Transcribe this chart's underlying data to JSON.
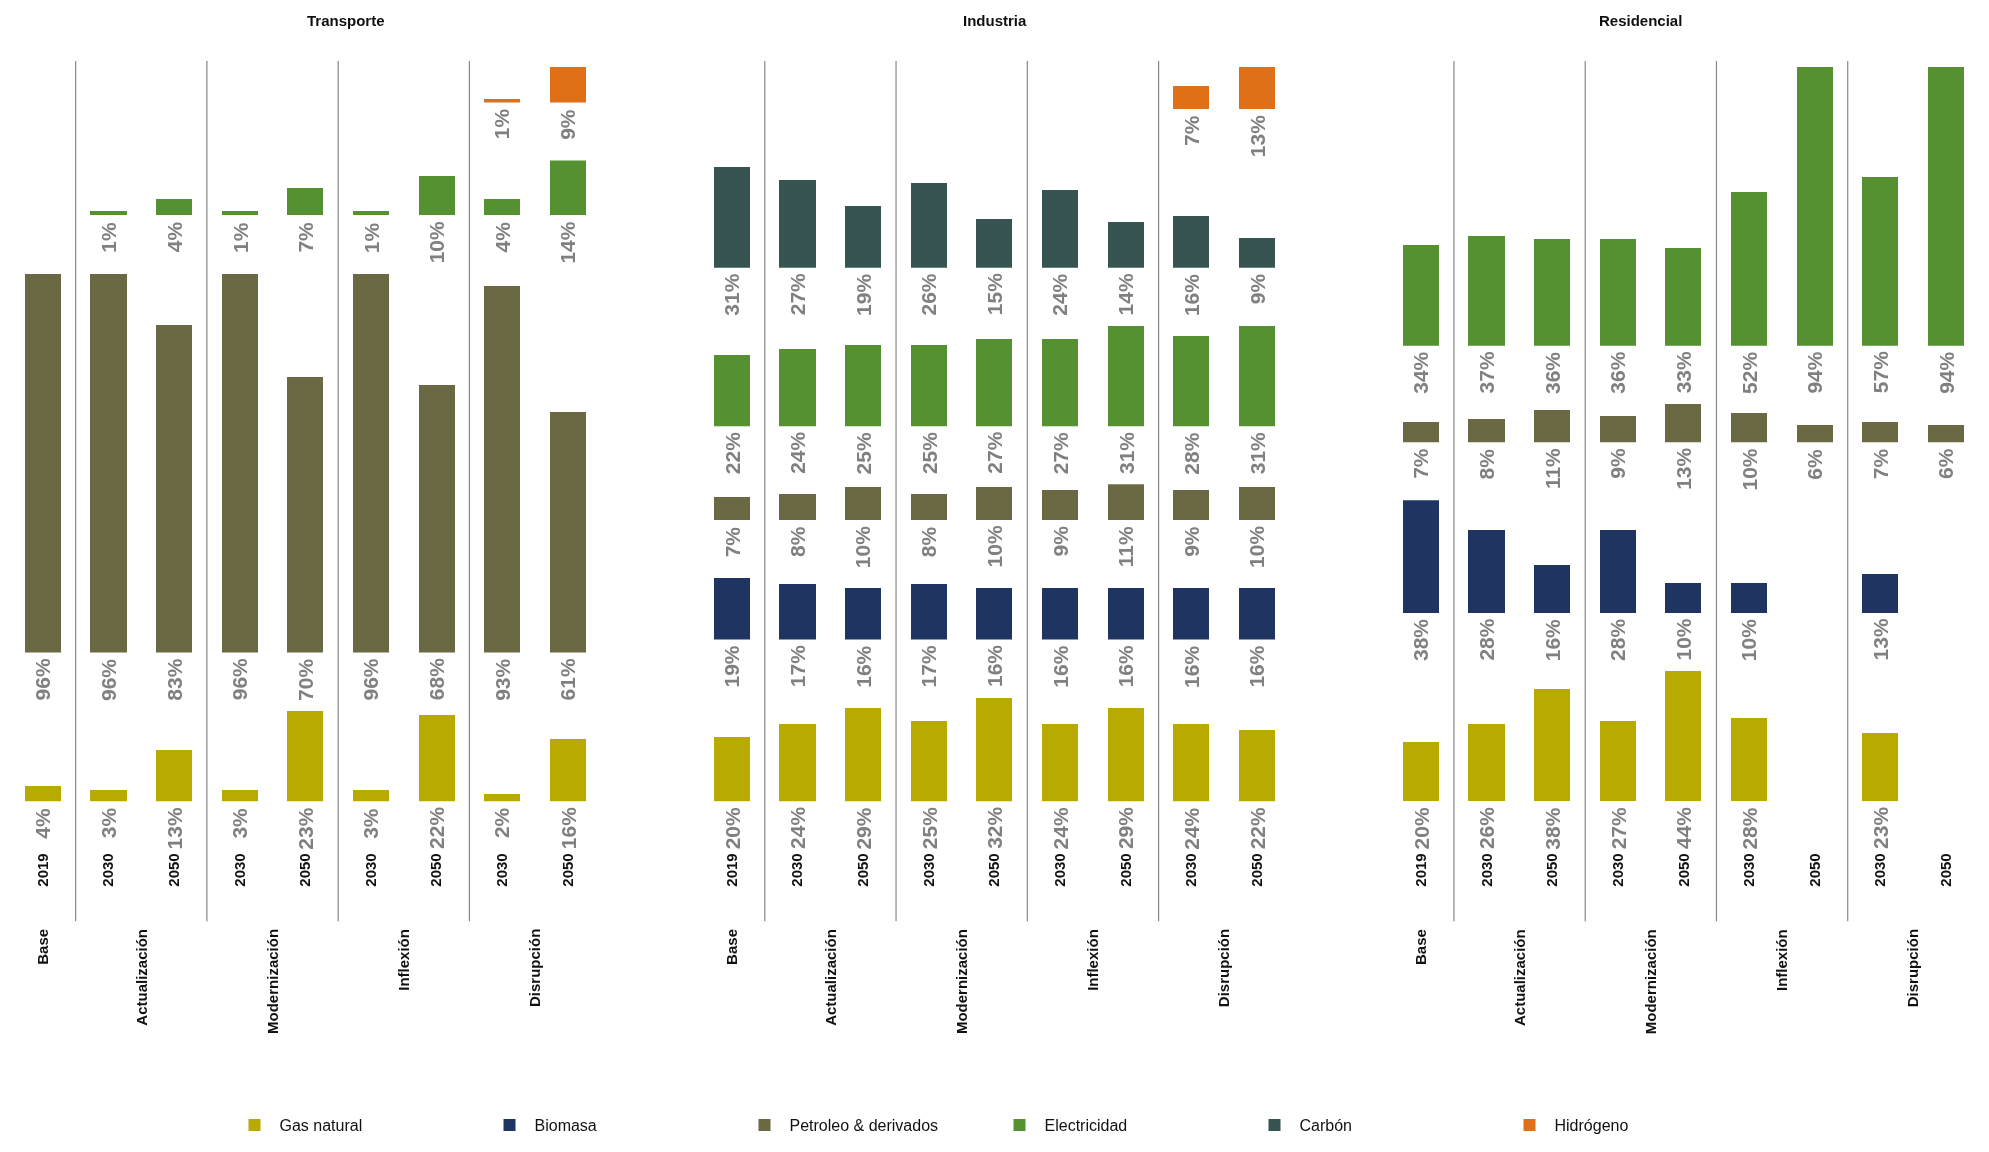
{
  "chart_data": [
    {
      "type": "bar",
      "title": "Transporte",
      "categories": [
        "2019",
        "2030",
        "2050",
        "2030",
        "2050",
        "2030",
        "2050",
        "2030",
        "2050"
      ],
      "tick_labels": false,
      "series": [
        {
          "color": "#e07018",
          "values": [
            null,
            null,
            null,
            null,
            null,
            null,
            null,
            1,
            9
          ],
          "value_labels": [
            null,
            null,
            null,
            null,
            null,
            null,
            null,
            "1%",
            "9%"
          ]
        }
      ]
    },
    {
      "type": "bar",
      "categories": [
        "2019",
        "2030",
        "2050",
        "2030",
        "2050",
        "2030",
        "2050",
        "2030",
        "2050"
      ],
      "tick_labels": false,
      "series": [
        {
          "color": "#559130",
          "values": [
            null,
            1,
            4,
            1,
            7,
            1,
            10,
            4,
            14
          ],
          "value_labels": [
            null,
            "1%",
            "4%",
            "1%",
            "7%",
            "1%",
            "10%",
            "4%",
            "14%"
          ]
        }
      ]
    },
    {
      "type": "bar",
      "categories": [
        "2019",
        "2030",
        "2050",
        "2030",
        "2050",
        "2030",
        "2050",
        "2030",
        "2050"
      ],
      "tick_labels": false,
      "series": [
        {
          "color": "#6b6944",
          "values": [
            96,
            96,
            83,
            96,
            70,
            96,
            68,
            93,
            61
          ],
          "value_labels": [
            "96%",
            "96%",
            "83%",
            "96%",
            "70%",
            "96%",
            "68%",
            "93%",
            "61%"
          ]
        }
      ]
    },
    {
      "type": "bar",
      "categories": [
        "2019",
        "2030",
        "2050",
        "2030",
        "2050",
        "2030",
        "2050",
        "2030",
        "2050"
      ],
      "tick_labels": "x",
      "annotations": [
        "Base",
        "Actualización",
        "Modernización",
        "Inflexión",
        "Disrupción"
      ],
      "series": [
        {
          "color": "#b8aa00",
          "values": [
            4,
            3,
            13,
            3,
            23,
            3,
            22,
            2,
            16
          ],
          "value_labels": [
            "4%",
            "3%",
            "13%",
            "3%",
            "23%",
            "3%",
            "22%",
            "2%",
            "16%"
          ]
        }
      ]
    },
    {
      "type": "bar",
      "title": "Industria",
      "categories": [
        "2019",
        "2030",
        "2050",
        "2030",
        "2050",
        "2030",
        "2050",
        "2030",
        "2050"
      ],
      "tick_labels": false,
      "legend": "bottom",
      "series": [
        {
          "name": "Hidrógeno",
          "color": "#e07018",
          "values": [
            null,
            null,
            null,
            null,
            null,
            null,
            null,
            7,
            13
          ],
          "value_labels": [
            null,
            null,
            null,
            null,
            null,
            null,
            null,
            "7%",
            "13%"
          ]
        }
      ]
    },
    {
      "type": "bar",
      "categories": [
        "2019",
        "2030",
        "2050",
        "2030",
        "2050",
        "2030",
        "2050",
        "2030",
        "2050"
      ],
      "tick_labels": false,
      "legend": "bottom",
      "series": [
        {
          "name": "Carbón",
          "color": "#375352",
          "values": [
            31,
            27,
            19,
            26,
            15,
            24,
            14,
            16,
            9
          ],
          "value_labels": [
            "31%",
            "27%",
            "19%",
            "26%",
            "15%",
            "24%",
            "14%",
            "16%",
            "9%"
          ]
        }
      ]
    },
    {
      "type": "bar",
      "categories": [
        "2019",
        "2030",
        "2050",
        "2030",
        "2050",
        "2030",
        "2050",
        "2030",
        "2050"
      ],
      "tick_labels": false,
      "legend": "bottom",
      "series": [
        {
          "name": "Electricidad",
          "color": "#559130",
          "values": [
            22,
            24,
            25,
            25,
            27,
            27,
            31,
            28,
            31
          ],
          "value_labels": [
            "22%",
            "24%",
            "25%",
            "25%",
            "27%",
            "27%",
            "31%",
            "28%",
            "31%"
          ]
        }
      ]
    },
    {
      "type": "bar",
      "categories": [
        "2019",
        "2030",
        "2050",
        "2030",
        "2050",
        "2030",
        "2050",
        "2030",
        "2050"
      ],
      "tick_labels": false,
      "legend": "bottom",
      "series": [
        {
          "name": "Petroleo & derivados",
          "color": "#6b6944",
          "values": [
            7,
            8,
            10,
            8,
            10,
            9,
            11,
            9,
            10
          ],
          "value_labels": [
            "7%",
            "8%",
            "10%",
            "8%",
            "10%",
            "9%",
            "11%",
            "9%",
            "10%"
          ]
        }
      ]
    },
    {
      "type": "bar",
      "categories": [
        "2019",
        "2030",
        "2050",
        "2030",
        "2050",
        "2030",
        "2050",
        "2030",
        "2050"
      ],
      "tick_labels": false,
      "legend": "bottom",
      "series": [
        {
          "name": "Biomasa",
          "color": "#1f3461",
          "values": [
            19,
            17,
            16,
            17,
            16,
            16,
            16,
            16,
            16
          ],
          "value_labels": [
            "19%",
            "17%",
            "16%",
            "17%",
            "16%",
            "16%",
            "16%",
            "16%",
            "16%"
          ]
        }
      ]
    },
    {
      "type": "bar",
      "categories": [
        "2019",
        "2030",
        "2050",
        "2030",
        "2050",
        "2030",
        "2050",
        "2030",
        "2050"
      ],
      "tick_labels": "x",
      "legend": "bottom",
      "annotations": [
        "Base",
        "Actualización",
        "Modernización",
        "Inflexión",
        "Disrupción"
      ],
      "series": [
        {
          "name": "Gas natural",
          "color": "#b8aa00",
          "values": [
            20,
            24,
            29,
            25,
            32,
            24,
            29,
            24,
            22
          ],
          "value_labels": [
            "20%",
            "24%",
            "29%",
            "25%",
            "32%",
            "24%",
            "29%",
            "24%",
            "22%"
          ]
        }
      ]
    },
    {
      "type": "bar",
      "title": "Residencial",
      "categories": [
        "2019",
        "2030",
        "2050",
        "2030",
        "2050",
        "2030",
        "2050",
        "2030",
        "2050"
      ],
      "tick_labels": false,
      "series": [
        {
          "color": "#559130",
          "values": [
            34,
            37,
            36,
            36,
            33,
            52,
            94,
            57,
            94
          ],
          "value_labels": [
            "34%",
            "37%",
            "36%",
            "36%",
            "33%",
            "52%",
            "94%",
            "57%",
            "94%"
          ]
        }
      ]
    },
    {
      "type": "bar",
      "categories": [
        "2019",
        "2030",
        "2050",
        "2030",
        "2050",
        "2030",
        "2050",
        "2030",
        "2050"
      ],
      "tick_labels": false,
      "series": [
        {
          "color": "#6b6944",
          "values": [
            7,
            8,
            11,
            9,
            13,
            10,
            6,
            7,
            6
          ],
          "value_labels": [
            "7%",
            "8%",
            "11%",
            "9%",
            "13%",
            "10%",
            "6%",
            "7%",
            "6%"
          ]
        }
      ]
    },
    {
      "type": "bar",
      "categories": [
        "2019",
        "2030",
        "2050",
        "2030",
        "2050",
        "2030",
        "2050",
        "2030",
        "2050"
      ],
      "tick_labels": false,
      "series": [
        {
          "color": "#1f3461",
          "values": [
            38,
            28,
            16,
            28,
            10,
            10,
            null,
            13,
            null
          ],
          "value_labels": [
            "38%",
            "28%",
            "16%",
            "28%",
            "10%",
            "10%",
            null,
            "13%",
            null
          ]
        }
      ]
    },
    {
      "type": "bar",
      "categories": [
        "2019",
        "2030",
        "2050",
        "2030",
        "2050",
        "2030",
        "2050",
        "2030",
        "2050"
      ],
      "tick_labels": "x",
      "annotations": [
        "Base",
        "Actualización",
        "Modernización",
        "Inflexión",
        "Disrupción"
      ],
      "series": [
        {
          "color": "#b8aa00",
          "values": [
            20,
            26,
            38,
            27,
            44,
            28,
            null,
            23,
            null
          ],
          "value_labels": [
            "20%",
            "26%",
            "38%",
            "27%",
            "44%",
            "28%",
            null,
            "23%",
            null
          ]
        }
      ]
    }
  ]
}
